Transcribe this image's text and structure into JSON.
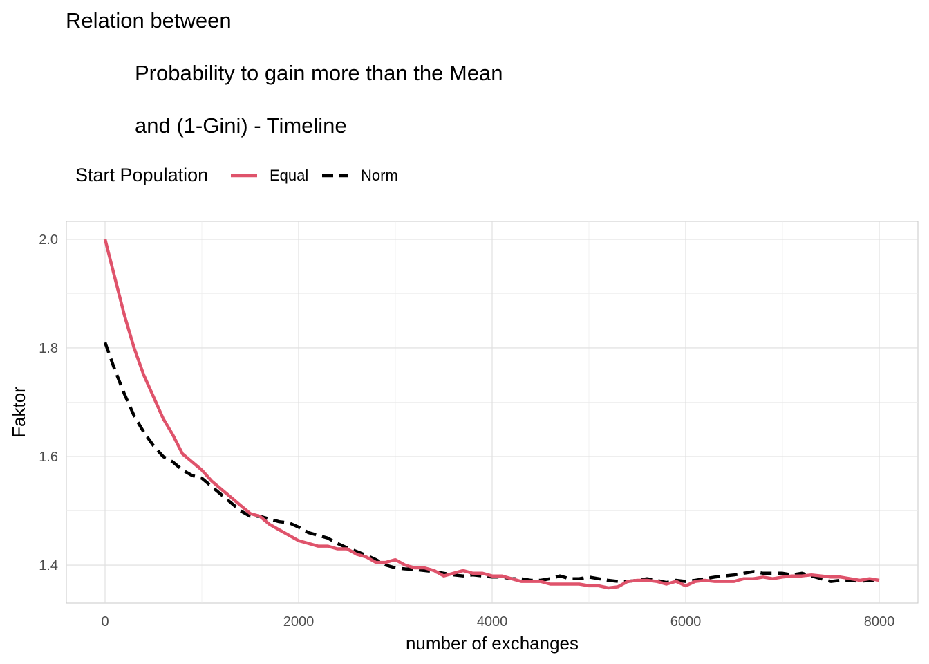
{
  "chart_data": {
    "type": "line",
    "title_lines": [
      "Relation between",
      "Probability to gain more than the Mean",
      "and (1-Gini) - Timeline"
    ],
    "xlabel": "number of exchanges",
    "ylabel": "Faktor",
    "xlim": [
      -400,
      8400
    ],
    "ylim": [
      1.33,
      2.033
    ],
    "x_ticks": [
      0,
      2000,
      4000,
      6000,
      8000
    ],
    "x_tick_labels": [
      "0",
      "2000",
      "4000",
      "6000",
      "8000"
    ],
    "y_ticks": [
      1.4,
      1.6,
      1.8,
      2.0
    ],
    "y_tick_labels": [
      "1.4",
      "1.6",
      "1.8",
      "2.0"
    ],
    "grid": true,
    "legend": {
      "title": "Start Population",
      "position": "top",
      "entries": [
        "Equal",
        "Norm"
      ]
    },
    "series": [
      {
        "name": "Equal",
        "color": "#DF536B",
        "linestyle": "solid",
        "x": [
          0,
          100,
          200,
          300,
          400,
          500,
          600,
          700,
          800,
          900,
          1000,
          1100,
          1200,
          1300,
          1400,
          1500,
          1600,
          1700,
          1800,
          1900,
          2000,
          2100,
          2200,
          2300,
          2400,
          2500,
          2600,
          2700,
          2800,
          2900,
          3000,
          3100,
          3200,
          3300,
          3400,
          3500,
          3600,
          3700,
          3800,
          3900,
          4000,
          4100,
          4200,
          4300,
          4400,
          4500,
          4600,
          4700,
          4800,
          4900,
          5000,
          5100,
          5200,
          5300,
          5400,
          5500,
          5600,
          5700,
          5800,
          5900,
          6000,
          6100,
          6200,
          6300,
          6400,
          6500,
          6600,
          6700,
          6800,
          6900,
          7000,
          7100,
          7200,
          7300,
          7400,
          7500,
          7600,
          7700,
          7800,
          7900,
          8000
        ],
        "y": [
          2.0,
          1.93,
          1.86,
          1.8,
          1.75,
          1.71,
          1.67,
          1.64,
          1.605,
          1.59,
          1.575,
          1.555,
          1.54,
          1.525,
          1.51,
          1.495,
          1.49,
          1.475,
          1.465,
          1.455,
          1.445,
          1.44,
          1.435,
          1.435,
          1.43,
          1.43,
          1.42,
          1.415,
          1.405,
          1.405,
          1.41,
          1.4,
          1.395,
          1.395,
          1.39,
          1.38,
          1.385,
          1.39,
          1.385,
          1.385,
          1.38,
          1.38,
          1.375,
          1.37,
          1.37,
          1.37,
          1.365,
          1.365,
          1.365,
          1.365,
          1.362,
          1.362,
          1.358,
          1.36,
          1.37,
          1.372,
          1.372,
          1.37,
          1.365,
          1.37,
          1.362,
          1.37,
          1.372,
          1.37,
          1.37,
          1.37,
          1.375,
          1.375,
          1.378,
          1.375,
          1.378,
          1.38,
          1.38,
          1.382,
          1.38,
          1.378,
          1.378,
          1.375,
          1.372,
          1.375,
          1.372
        ]
      },
      {
        "name": "Norm",
        "color": "#000000",
        "linestyle": "dashed",
        "x": [
          0,
          100,
          200,
          300,
          400,
          500,
          600,
          700,
          800,
          900,
          1000,
          1100,
          1200,
          1300,
          1400,
          1500,
          1600,
          1700,
          1800,
          1900,
          2000,
          2100,
          2200,
          2300,
          2400,
          2500,
          2600,
          2700,
          2800,
          2900,
          3000,
          3100,
          3200,
          3300,
          3400,
          3500,
          3600,
          3700,
          3800,
          3900,
          4000,
          4100,
          4200,
          4300,
          4400,
          4500,
          4600,
          4700,
          4800,
          4900,
          5000,
          5100,
          5200,
          5300,
          5400,
          5500,
          5600,
          5700,
          5800,
          5900,
          6000,
          6100,
          6200,
          6300,
          6400,
          6500,
          6600,
          6700,
          6800,
          6900,
          7000,
          7100,
          7200,
          7300,
          7400,
          7500,
          7600,
          7700,
          7800,
          7900,
          8000
        ],
        "y": [
          1.81,
          1.76,
          1.715,
          1.675,
          1.645,
          1.62,
          1.6,
          1.59,
          1.575,
          1.565,
          1.56,
          1.545,
          1.53,
          1.515,
          1.5,
          1.49,
          1.49,
          1.485,
          1.48,
          1.478,
          1.47,
          1.46,
          1.455,
          1.45,
          1.44,
          1.432,
          1.425,
          1.418,
          1.41,
          1.4,
          1.395,
          1.393,
          1.392,
          1.39,
          1.388,
          1.385,
          1.382,
          1.38,
          1.382,
          1.38,
          1.378,
          1.378,
          1.375,
          1.375,
          1.372,
          1.372,
          1.375,
          1.38,
          1.375,
          1.375,
          1.378,
          1.375,
          1.372,
          1.37,
          1.37,
          1.372,
          1.375,
          1.372,
          1.368,
          1.372,
          1.37,
          1.372,
          1.375,
          1.378,
          1.38,
          1.382,
          1.385,
          1.388,
          1.385,
          1.385,
          1.385,
          1.382,
          1.385,
          1.38,
          1.375,
          1.37,
          1.372,
          1.372,
          1.37,
          1.372,
          1.372
        ]
      }
    ]
  }
}
